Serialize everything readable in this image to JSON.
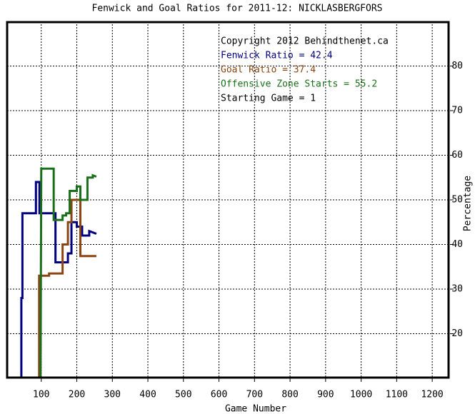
{
  "chart_data": {
    "type": "line",
    "title": "Fenwick and Goal Ratios for 2011-12: NICKLASBERGFORS",
    "xlabel": "Game Number",
    "ylabel": "Percentage",
    "annotations": [
      "Copyright 2012 Behindthenet.ca",
      "Starting Game = 1"
    ],
    "xlim": [
      0,
      1250
    ],
    "ylim": [
      10,
      90
    ],
    "xticks": [
      100,
      200,
      300,
      400,
      500,
      600,
      700,
      800,
      900,
      1000,
      1100,
      1200
    ],
    "yticks": [
      20,
      30,
      40,
      50,
      60,
      70,
      80
    ],
    "grid": true,
    "series": [
      {
        "name": "Fenwick Ratio = 42.4",
        "color": "#000080",
        "x": [
          44,
          44,
          47,
          47,
          85,
          85,
          95,
          95,
          140,
          140,
          175,
          175,
          185,
          185,
          200,
          200,
          215,
          215,
          235,
          235,
          255
        ],
        "values": [
          10,
          28,
          28,
          47,
          47,
          54,
          54,
          47,
          47,
          36,
          36,
          38,
          38,
          45,
          45,
          44,
          44,
          42,
          42,
          43,
          42.4
        ]
      },
      {
        "name": "Goal Ratio = 37.4",
        "color": "#8b4513",
        "x": [
          94,
          94,
          122,
          122,
          160,
          160,
          175,
          175,
          185,
          185,
          210,
          210,
          255
        ],
        "values": [
          10,
          33,
          33,
          33.5,
          33.5,
          40,
          40,
          45,
          45,
          50,
          50,
          37.4,
          37.4
        ]
      },
      {
        "name": "Offensive Zone Starts = 55.2",
        "color": "#1a701a",
        "x": [
          98,
          100,
          135,
          135,
          160,
          160,
          170,
          170,
          180,
          180,
          200,
          200,
          210,
          210,
          230,
          230,
          245,
          245,
          255
        ],
        "values": [
          10,
          57,
          57,
          45.5,
          45.5,
          46.5,
          46.5,
          47,
          47,
          52,
          52,
          53,
          53,
          50,
          50,
          55,
          55,
          55.5,
          55.2
        ]
      }
    ]
  }
}
